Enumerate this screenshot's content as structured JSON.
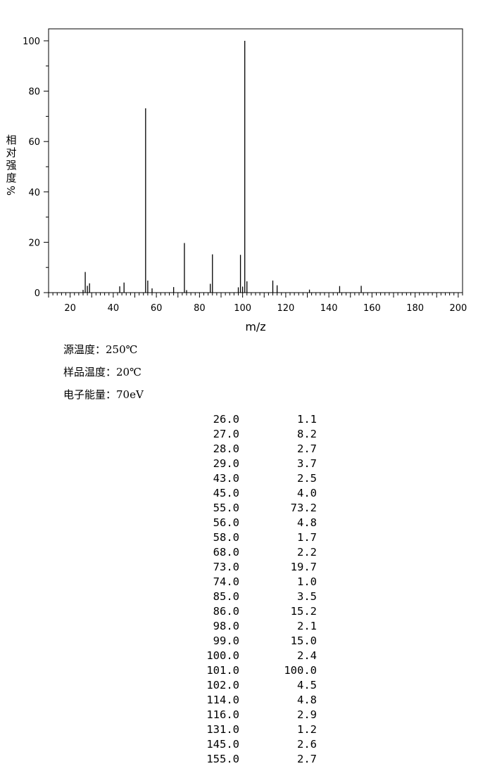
{
  "chart_data": {
    "type": "bar",
    "xlabel": "m/z",
    "ylabel_chars": [
      "相",
      "对",
      "强",
      "度"
    ],
    "ylabel_unit": "%",
    "xlim": [
      10,
      202
    ],
    "ylim": [
      0,
      105
    ],
    "xticks": [
      20,
      40,
      60,
      80,
      100,
      120,
      140,
      160,
      180,
      200
    ],
    "yticks": [
      0,
      20,
      40,
      60,
      80,
      100
    ],
    "grid": false,
    "x": [
      26.0,
      27.0,
      28.0,
      29.0,
      43.0,
      45.0,
      55.0,
      56.0,
      58.0,
      68.0,
      73.0,
      74.0,
      85.0,
      86.0,
      98.0,
      99.0,
      100.0,
      101.0,
      102.0,
      114.0,
      116.0,
      131.0,
      145.0,
      155.0
    ],
    "values": [
      1.1,
      8.2,
      2.7,
      3.7,
      2.5,
      4.0,
      73.2,
      4.8,
      1.7,
      2.2,
      19.7,
      1.0,
      3.5,
      15.2,
      2.1,
      15.0,
      2.4,
      100.0,
      4.5,
      4.8,
      2.9,
      1.2,
      2.6,
      2.7
    ]
  },
  "conditions": [
    "源温度：250℃",
    "样品温度：20℃",
    "电子能量：70eV"
  ],
  "peak_table": [
    {
      "mz": "26.0",
      "intensity": "1.1"
    },
    {
      "mz": "27.0",
      "intensity": "8.2"
    },
    {
      "mz": "28.0",
      "intensity": "2.7"
    },
    {
      "mz": "29.0",
      "intensity": "3.7"
    },
    {
      "mz": "43.0",
      "intensity": "2.5"
    },
    {
      "mz": "45.0",
      "intensity": "4.0"
    },
    {
      "mz": "55.0",
      "intensity": "73.2"
    },
    {
      "mz": "56.0",
      "intensity": "4.8"
    },
    {
      "mz": "58.0",
      "intensity": "1.7"
    },
    {
      "mz": "68.0",
      "intensity": "2.2"
    },
    {
      "mz": "73.0",
      "intensity": "19.7"
    },
    {
      "mz": "74.0",
      "intensity": "1.0"
    },
    {
      "mz": "85.0",
      "intensity": "3.5"
    },
    {
      "mz": "86.0",
      "intensity": "15.2"
    },
    {
      "mz": "98.0",
      "intensity": "2.1"
    },
    {
      "mz": "99.0",
      "intensity": "15.0"
    },
    {
      "mz": "100.0",
      "intensity": "2.4"
    },
    {
      "mz": "101.0",
      "intensity": "100.0"
    },
    {
      "mz": "102.0",
      "intensity": "4.5"
    },
    {
      "mz": "114.0",
      "intensity": "4.8"
    },
    {
      "mz": "116.0",
      "intensity": "2.9"
    },
    {
      "mz": "131.0",
      "intensity": "1.2"
    },
    {
      "mz": "145.0",
      "intensity": "2.6"
    },
    {
      "mz": "155.0",
      "intensity": "2.7"
    }
  ]
}
